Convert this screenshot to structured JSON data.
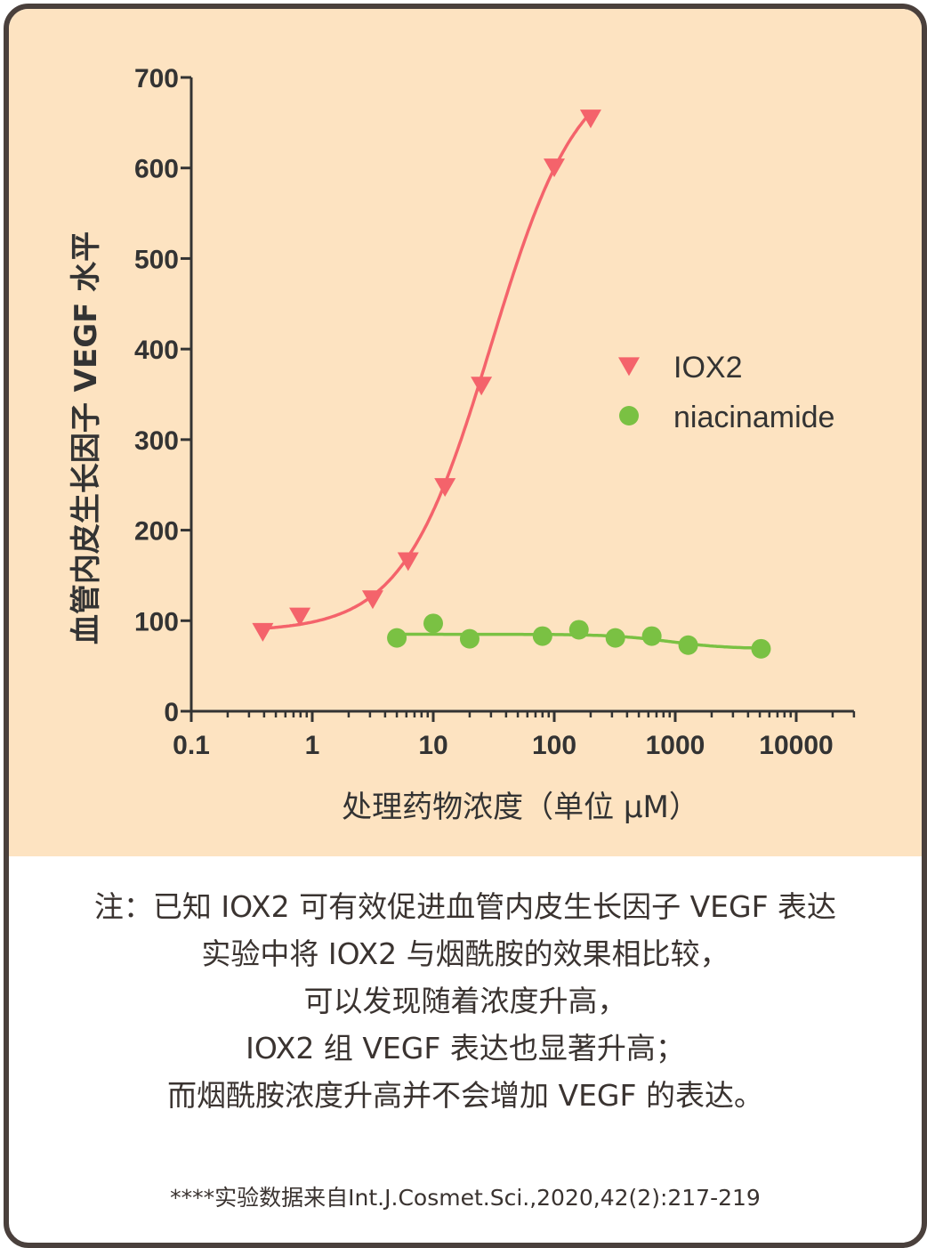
{
  "chart_data": {
    "type": "scatter",
    "title": "",
    "xlabel": "处理药物浓度（单位 μM）",
    "ylabel": "血管内皮生长因子 VEGF 水平",
    "xscale": "log",
    "xlim": [
      0.1,
      30000
    ],
    "ylim": [
      0,
      700
    ],
    "xticks": [
      0.1,
      1,
      10,
      100,
      1000,
      10000
    ],
    "xtick_labels": [
      "0.1",
      "1",
      "10",
      "100",
      "1000",
      "10000"
    ],
    "yticks": [
      0,
      100,
      200,
      300,
      400,
      500,
      600,
      700
    ],
    "ytick_labels": [
      "0",
      "100",
      "200",
      "300",
      "400",
      "500",
      "600",
      "700"
    ],
    "grid": false,
    "legend_position": "right",
    "series": [
      {
        "name": "IOX2",
        "marker": "triangle-down",
        "color": "#f4636b",
        "x": [
          0.39,
          0.79,
          3.16,
          6.2,
          12.5,
          25,
          100,
          200
        ],
        "y": [
          88,
          105,
          124,
          166,
          248,
          360,
          601,
          655
        ]
      },
      {
        "name": "niacinamide",
        "marker": "circle",
        "color": "#7ac143",
        "x": [
          5,
          10,
          20,
          80,
          160,
          320,
          640,
          1280,
          5120
        ],
        "y": [
          81,
          97,
          80,
          83,
          90,
          81,
          83,
          73,
          69
        ]
      }
    ]
  },
  "note_lines": [
    "注：已知 IOX2 可有效促进血管内皮生长因子 VEGF 表达",
    "实验中将 IOX2 与烟酰胺的效果相比较，",
    "可以发现随着浓度升高，",
    "IOX2 组 VEGF 表达也显著升高；",
    "而烟酰胺浓度升高并不会增加 VEGF 的表达。"
  ],
  "source": "****实验数据来自Int.J.Cosmet.Sci.,2020,42(2):217-219",
  "colors": {
    "background": "#fde3c1",
    "border": "#4a403c",
    "axis": "#333333"
  }
}
